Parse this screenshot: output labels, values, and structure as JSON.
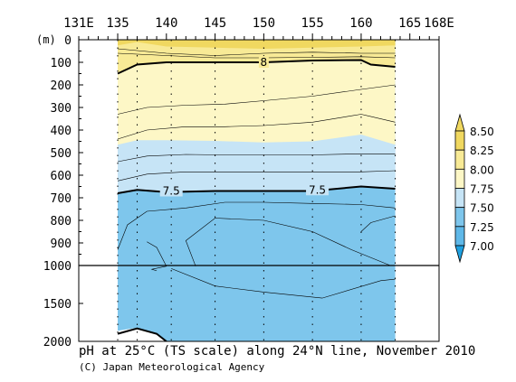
{
  "chart_data": {
    "type": "heatmap",
    "title": "pH at 25°C (TS scale) along 24°N line, November 2010",
    "credit": "(C) Japan Meteorological Agency",
    "x_axis": {
      "unit": "",
      "ticks": [
        131,
        135,
        140,
        145,
        150,
        155,
        160,
        165,
        168
      ],
      "tick_labels": [
        "131E",
        "135",
        "140",
        "145",
        "150",
        "155",
        "160",
        "165",
        "168E"
      ],
      "range": [
        131,
        168
      ]
    },
    "y_axis": {
      "label": "(m)",
      "upper_ticks": [
        0,
        100,
        200,
        300,
        400,
        500,
        600,
        700,
        800,
        900,
        1000
      ],
      "upper_labels": [
        "0",
        "100",
        "200",
        "300",
        "400",
        "500",
        "600",
        "700",
        "800",
        "900",
        "1000"
      ],
      "lower_ticks": [
        1500,
        2000
      ],
      "lower_labels": [
        "1500",
        "2000"
      ],
      "break_depth": 1000,
      "range": [
        0,
        2000
      ],
      "inverted": true
    },
    "data_extent_lon": [
      135,
      163.5
    ],
    "station_lons": [
      135.0,
      137.0,
      140.5,
      145.0,
      150.0,
      155.0,
      160.0,
      163.5
    ],
    "colorbar": {
      "levels": [
        7.0,
        7.25,
        7.5,
        7.75,
        8.0,
        8.25,
        8.5
      ],
      "labels": [
        "7.00",
        "7.25",
        "7.50",
        "7.75",
        "8.00",
        "8.25",
        "8.50"
      ],
      "colors": [
        "#1fa0e0",
        "#5fb8e8",
        "#7ec6ec",
        "#c6e4f6",
        "#fdf7c6",
        "#f8ea96",
        "#f0d860"
      ],
      "extend": "both"
    },
    "band_boundaries": [
      {
        "level": 8.25,
        "depths": [
          [
            135,
            25
          ],
          [
            137,
            10
          ],
          [
            140,
            30
          ],
          [
            145,
            35
          ],
          [
            150,
            40
          ],
          [
            155,
            35
          ],
          [
            160,
            30
          ],
          [
            163.5,
            25
          ]
        ]
      },
      {
        "level": 8.0,
        "depths": [
          [
            135,
            150
          ],
          [
            137,
            110
          ],
          [
            140,
            100
          ],
          [
            145,
            100
          ],
          [
            150,
            100
          ],
          [
            155,
            92
          ],
          [
            160,
            90
          ],
          [
            161,
            110
          ],
          [
            163.5,
            120
          ]
        ]
      },
      {
        "level": 7.75,
        "depths": [
          [
            135,
            465
          ],
          [
            137,
            445
          ],
          [
            140,
            445
          ],
          [
            145,
            448
          ],
          [
            150,
            455
          ],
          [
            155,
            450
          ],
          [
            160,
            420
          ],
          [
            163.5,
            465
          ]
        ]
      },
      {
        "level": 7.5,
        "depths": [
          [
            135,
            680
          ],
          [
            137,
            665
          ],
          [
            140,
            675
          ],
          [
            145,
            670
          ],
          [
            150,
            670
          ],
          [
            155,
            670
          ],
          [
            160,
            650
          ],
          [
            163.5,
            660
          ]
        ]
      }
    ],
    "contour_labels": [
      {
        "text": "8",
        "lon": 150,
        "depth": 100
      },
      {
        "text": "7.5",
        "lon": 140.5,
        "depth": 670
      },
      {
        "text": "7.5",
        "lon": 155.5,
        "depth": 665
      }
    ],
    "contours": [
      {
        "bold": false,
        "points": [
          [
            135,
            40
          ],
          [
            140,
            60
          ],
          [
            145,
            70
          ],
          [
            150,
            60
          ],
          [
            155,
            55
          ],
          [
            160,
            60
          ],
          [
            163.5,
            60
          ]
        ]
      },
      {
        "bold": false,
        "points": [
          [
            135,
            60
          ],
          [
            140,
            70
          ],
          [
            145,
            80
          ],
          [
            150,
            80
          ],
          [
            155,
            78
          ],
          [
            160,
            75
          ],
          [
            163.5,
            80
          ]
        ]
      },
      {
        "bold": true,
        "points": [
          [
            135,
            150
          ],
          [
            137,
            110
          ],
          [
            140,
            100
          ],
          [
            145,
            100
          ],
          [
            150,
            100
          ],
          [
            155,
            92
          ],
          [
            160,
            90
          ],
          [
            161,
            110
          ],
          [
            163.5,
            120
          ]
        ]
      },
      {
        "bold": false,
        "points": [
          [
            135,
            330
          ],
          [
            138,
            300
          ],
          [
            142,
            290
          ],
          [
            146,
            285
          ],
          [
            150,
            270
          ],
          [
            155,
            250
          ],
          [
            160,
            220
          ],
          [
            163.5,
            200
          ]
        ]
      },
      {
        "bold": false,
        "points": [
          [
            135,
            440
          ],
          [
            138,
            400
          ],
          [
            142,
            385
          ],
          [
            146,
            385
          ],
          [
            150,
            380
          ],
          [
            155,
            365
          ],
          [
            160,
            330
          ],
          [
            163.5,
            365
          ]
        ]
      },
      {
        "bold": false,
        "points": [
          [
            135,
            540
          ],
          [
            138,
            515
          ],
          [
            142,
            508
          ],
          [
            146,
            510
          ],
          [
            150,
            510
          ],
          [
            155,
            510
          ],
          [
            160,
            505
          ],
          [
            163.5,
            505
          ]
        ]
      },
      {
        "bold": false,
        "points": [
          [
            135,
            625
          ],
          [
            138,
            595
          ],
          [
            142,
            585
          ],
          [
            146,
            585
          ],
          [
            150,
            585
          ],
          [
            155,
            585
          ],
          [
            160,
            585
          ],
          [
            163.5,
            580
          ]
        ]
      },
      {
        "bold": true,
        "points": [
          [
            135,
            680
          ],
          [
            137,
            665
          ],
          [
            140,
            675
          ],
          [
            145,
            670
          ],
          [
            150,
            670
          ],
          [
            155,
            670
          ],
          [
            160,
            650
          ],
          [
            163.5,
            660
          ]
        ]
      },
      {
        "bold": false,
        "points": [
          [
            135,
            930
          ],
          [
            136,
            820
          ],
          [
            138,
            760
          ],
          [
            142,
            745
          ],
          [
            146,
            720
          ],
          [
            150,
            720
          ],
          [
            155,
            725
          ],
          [
            160,
            730
          ],
          [
            163.5,
            745
          ]
        ]
      },
      {
        "bold": false,
        "points": [
          [
            160,
            850
          ],
          [
            161,
            810
          ],
          [
            163.5,
            780
          ]
        ]
      },
      {
        "bold": false,
        "points": [
          [
            138,
            895
          ],
          [
            139,
            920
          ],
          [
            140,
            1010
          ],
          [
            138.5,
            1050
          ],
          [
            139,
            1070
          ]
        ]
      },
      {
        "bold": false,
        "points": [
          [
            143,
            1010
          ],
          [
            142,
            890
          ],
          [
            145,
            790
          ],
          [
            150,
            800
          ],
          [
            155,
            850
          ],
          [
            159,
            930
          ],
          [
            163,
            1000
          ]
        ]
      },
      {
        "bold": false,
        "points": [
          [
            140.5,
            1040
          ],
          [
            145,
            1270
          ],
          [
            150,
            1350
          ],
          [
            156,
            1430
          ],
          [
            162,
            1200
          ],
          [
            163.5,
            1180
          ]
        ]
      },
      {
        "bold": true,
        "points": [
          [
            135,
            1900
          ],
          [
            137,
            1830
          ],
          [
            139,
            1900
          ],
          [
            140,
            2000
          ]
        ]
      }
    ]
  }
}
